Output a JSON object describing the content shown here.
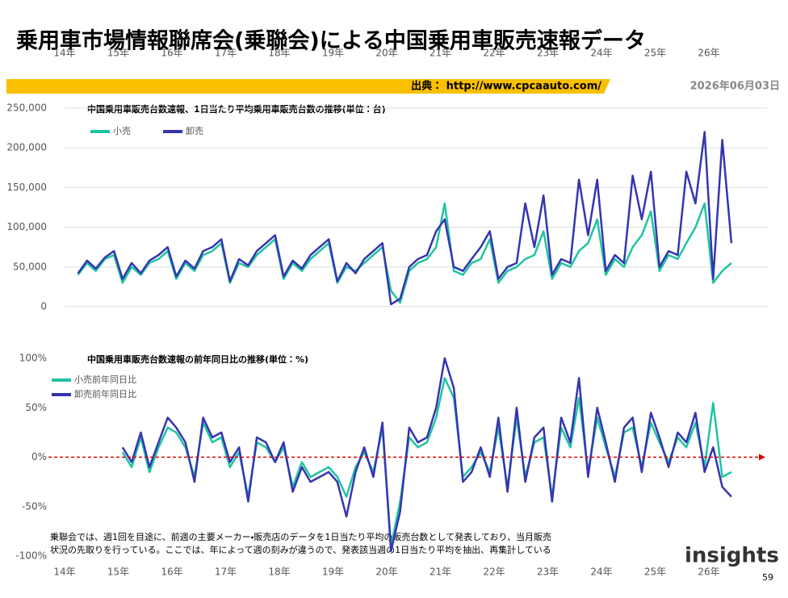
{
  "header": {
    "title": "乗用車市場情報聯席会(乗聯会)による中国乗用車販売速報データ",
    "source": "出典： http://www.cpcaauto.com/",
    "date": "2026年06月03日"
  },
  "footer": {
    "note_line1": "乗聯会では、週1回を目途に、前週の主要メーカー・販売店のデータを1日当たり平均の販売台数として発表しており、当月販売",
    "note_line2": "状況の先取りを行っている。ここでは、年によって週の刻みが違うので、発表該当週の1日当たり平均を抽出、再集計している",
    "logo": "insights",
    "page": "59"
  },
  "chart_data": [
    {
      "type": "line",
      "title": "中国乗用車販売台数速報、1日当たり平均乗用車販売台数の推移(単位：台)",
      "x": [
        14.25,
        14.42,
        14.58,
        14.75,
        14.92,
        15.08,
        15.25,
        15.42,
        15.58,
        15.75,
        15.92,
        16.08,
        16.25,
        16.42,
        16.58,
        16.75,
        16.92,
        17.08,
        17.25,
        17.42,
        17.58,
        17.75,
        17.92,
        18.08,
        18.25,
        18.42,
        18.58,
        18.75,
        18.92,
        19.08,
        19.25,
        19.42,
        19.58,
        19.75,
        19.92,
        20.08,
        20.25,
        20.42,
        20.58,
        20.75,
        20.92,
        21.08,
        21.25,
        21.42,
        21.58,
        21.75,
        21.92,
        22.08,
        22.25,
        22.42,
        22.58,
        22.75,
        22.92,
        23.08,
        23.25,
        23.42,
        23.58,
        23.75,
        23.92,
        24.08,
        24.25,
        24.42,
        24.58,
        24.75,
        24.92,
        25.08,
        25.25,
        25.42,
        25.58,
        25.75,
        25.92,
        26.08,
        26.25,
        26.42
      ],
      "series": [
        {
          "name": "小売",
          "color": "#1fc4a0",
          "values": [
            40000,
            55000,
            45000,
            60000,
            65000,
            30000,
            50000,
            40000,
            55000,
            60000,
            70000,
            35000,
            55000,
            45000,
            65000,
            70000,
            80000,
            30000,
            55000,
            50000,
            65000,
            75000,
            85000,
            35000,
            55000,
            45000,
            60000,
            70000,
            80000,
            30000,
            50000,
            45000,
            55000,
            65000,
            75000,
            20000,
            5000,
            45000,
            55000,
            60000,
            75000,
            130000,
            45000,
            40000,
            55000,
            60000,
            85000,
            30000,
            45000,
            50000,
            60000,
            65000,
            95000,
            35000,
            55000,
            50000,
            70000,
            80000,
            110000,
            40000,
            60000,
            50000,
            75000,
            90000,
            120000,
            45000,
            65000,
            60000,
            80000,
            100000,
            130000,
            30000,
            45000,
            55000
          ]
        },
        {
          "name": "卸売",
          "color": "#3535b0",
          "values": [
            42000,
            58000,
            48000,
            62000,
            70000,
            35000,
            55000,
            42000,
            58000,
            65000,
            75000,
            38000,
            58000,
            48000,
            70000,
            75000,
            85000,
            32000,
            60000,
            52000,
            70000,
            80000,
            90000,
            38000,
            58000,
            48000,
            65000,
            75000,
            85000,
            32000,
            55000,
            42000,
            60000,
            70000,
            80000,
            3000,
            10000,
            50000,
            60000,
            65000,
            95000,
            110000,
            50000,
            45000,
            60000,
            75000,
            95000,
            35000,
            50000,
            55000,
            130000,
            75000,
            140000,
            40000,
            60000,
            55000,
            160000,
            90000,
            160000,
            45000,
            65000,
            55000,
            165000,
            110000,
            170000,
            50000,
            70000,
            65000,
            170000,
            130000,
            220000,
            35000,
            210000,
            80000
          ]
        }
      ],
      "xlim": [
        13.95,
        27.1
      ],
      "xticks": [
        {
          "value": 14,
          "label": "14年"
        },
        {
          "value": 15,
          "label": "15年"
        },
        {
          "value": 16,
          "label": "16年"
        },
        {
          "value": 17,
          "label": "17年"
        },
        {
          "value": 18,
          "label": "18年"
        },
        {
          "value": 19,
          "label": "19年"
        },
        {
          "value": 20,
          "label": "20年"
        },
        {
          "value": 21,
          "label": "21年"
        },
        {
          "value": 22,
          "label": "22年"
        },
        {
          "value": 23,
          "label": "23年"
        },
        {
          "value": 24,
          "label": "24年"
        },
        {
          "value": 25,
          "label": "25年"
        },
        {
          "value": 26,
          "label": "26年"
        }
      ],
      "ylim": [
        0,
        250000
      ],
      "yticks": [
        0,
        {
          "value": 50000,
          "label": "50,000"
        },
        {
          "value": 100000,
          "label": "100,000"
        },
        {
          "value": 150000,
          "label": "150,000"
        },
        {
          "value": 200000,
          "label": "200,000"
        },
        {
          "value": 250000,
          "label": "250,000"
        }
      ],
      "grid": true
    },
    {
      "type": "line",
      "title": "中国乗用車販売台数速報の前年同日比の推移(単位：%)",
      "x": [
        14.25,
        14.42,
        14.58,
        14.75,
        14.92,
        15.08,
        15.25,
        15.42,
        15.58,
        15.75,
        15.92,
        16.08,
        16.25,
        16.42,
        16.58,
        16.75,
        16.92,
        17.08,
        17.25,
        17.42,
        17.58,
        17.75,
        17.92,
        18.08,
        18.25,
        18.42,
        18.58,
        18.75,
        18.92,
        19.08,
        19.25,
        19.42,
        19.58,
        19.75,
        19.92,
        20.08,
        20.25,
        20.42,
        20.58,
        20.75,
        20.92,
        21.08,
        21.25,
        21.42,
        21.58,
        21.75,
        21.92,
        22.08,
        22.25,
        22.42,
        22.58,
        22.75,
        22.92,
        23.08,
        23.25,
        23.42,
        23.58,
        23.75,
        23.92,
        24.08,
        24.25,
        24.42,
        24.58,
        24.75,
        24.92,
        25.08,
        25.25,
        25.42,
        25.58,
        25.75,
        25.92,
        26.08,
        26.25,
        26.42
      ],
      "series": [
        {
          "name": "小売前年同日比",
          "color": "#1fc4a0",
          "values": [
            null,
            null,
            null,
            null,
            null,
            5,
            -10,
            20,
            -15,
            10,
            30,
            25,
            10,
            -20,
            35,
            15,
            20,
            -10,
            5,
            -40,
            15,
            10,
            -5,
            10,
            -30,
            -5,
            -20,
            -15,
            -10,
            -20,
            -40,
            -10,
            5,
            -15,
            30,
            -90,
            -45,
            20,
            10,
            15,
            40,
            80,
            60,
            -20,
            -10,
            5,
            -15,
            30,
            -30,
            40,
            -20,
            15,
            20,
            -40,
            30,
            10,
            60,
            -15,
            40,
            10,
            -20,
            25,
            30,
            -10,
            35,
            15,
            -5,
            20,
            10,
            35,
            -10,
            55,
            -20,
            -15
          ]
        },
        {
          "name": "卸売前年同日比",
          "color": "#3535b0",
          "values": [
            null,
            null,
            null,
            null,
            null,
            10,
            -5,
            25,
            -10,
            15,
            40,
            30,
            15,
            -25,
            40,
            20,
            25,
            -5,
            10,
            -45,
            20,
            15,
            -5,
            15,
            -35,
            -10,
            -25,
            -20,
            -15,
            -25,
            -60,
            -15,
            10,
            -20,
            35,
            -95,
            -55,
            30,
            15,
            20,
            50,
            100,
            70,
            -25,
            -15,
            10,
            -20,
            40,
            -35,
            50,
            -25,
            20,
            30,
            -45,
            40,
            15,
            80,
            -20,
            50,
            15,
            -25,
            30,
            40,
            -15,
            45,
            20,
            -10,
            25,
            15,
            45,
            -15,
            10,
            -30,
            -40
          ]
        }
      ],
      "xlim": [
        13.95,
        27.1
      ],
      "xticks": [
        {
          "value": 14,
          "label": "14年"
        },
        {
          "value": 15,
          "label": "15年"
        },
        {
          "value": 16,
          "label": "16年"
        },
        {
          "value": 17,
          "label": "17年"
        },
        {
          "value": 18,
          "label": "18年"
        },
        {
          "value": 19,
          "label": "19年"
        },
        {
          "value": 20,
          "label": "20年"
        },
        {
          "value": 21,
          "label": "21年"
        },
        {
          "value": 22,
          "label": "22年"
        },
        {
          "value": 23,
          "label": "23年"
        },
        {
          "value": 24,
          "label": "24年"
        },
        {
          "value": 25,
          "label": "25年"
        },
        {
          "value": 26,
          "label": "26年"
        }
      ],
      "ylim": [
        -100,
        100
      ],
      "yticks": [
        {
          "value": -100,
          "label": "-100%"
        },
        {
          "value": -50,
          "label": "-50%"
        },
        {
          "value": 0,
          "label": "0%"
        },
        {
          "value": 50,
          "label": "50%"
        },
        {
          "value": 100,
          "label": "100%"
        }
      ],
      "reference_line": 0,
      "grid": false
    }
  ]
}
